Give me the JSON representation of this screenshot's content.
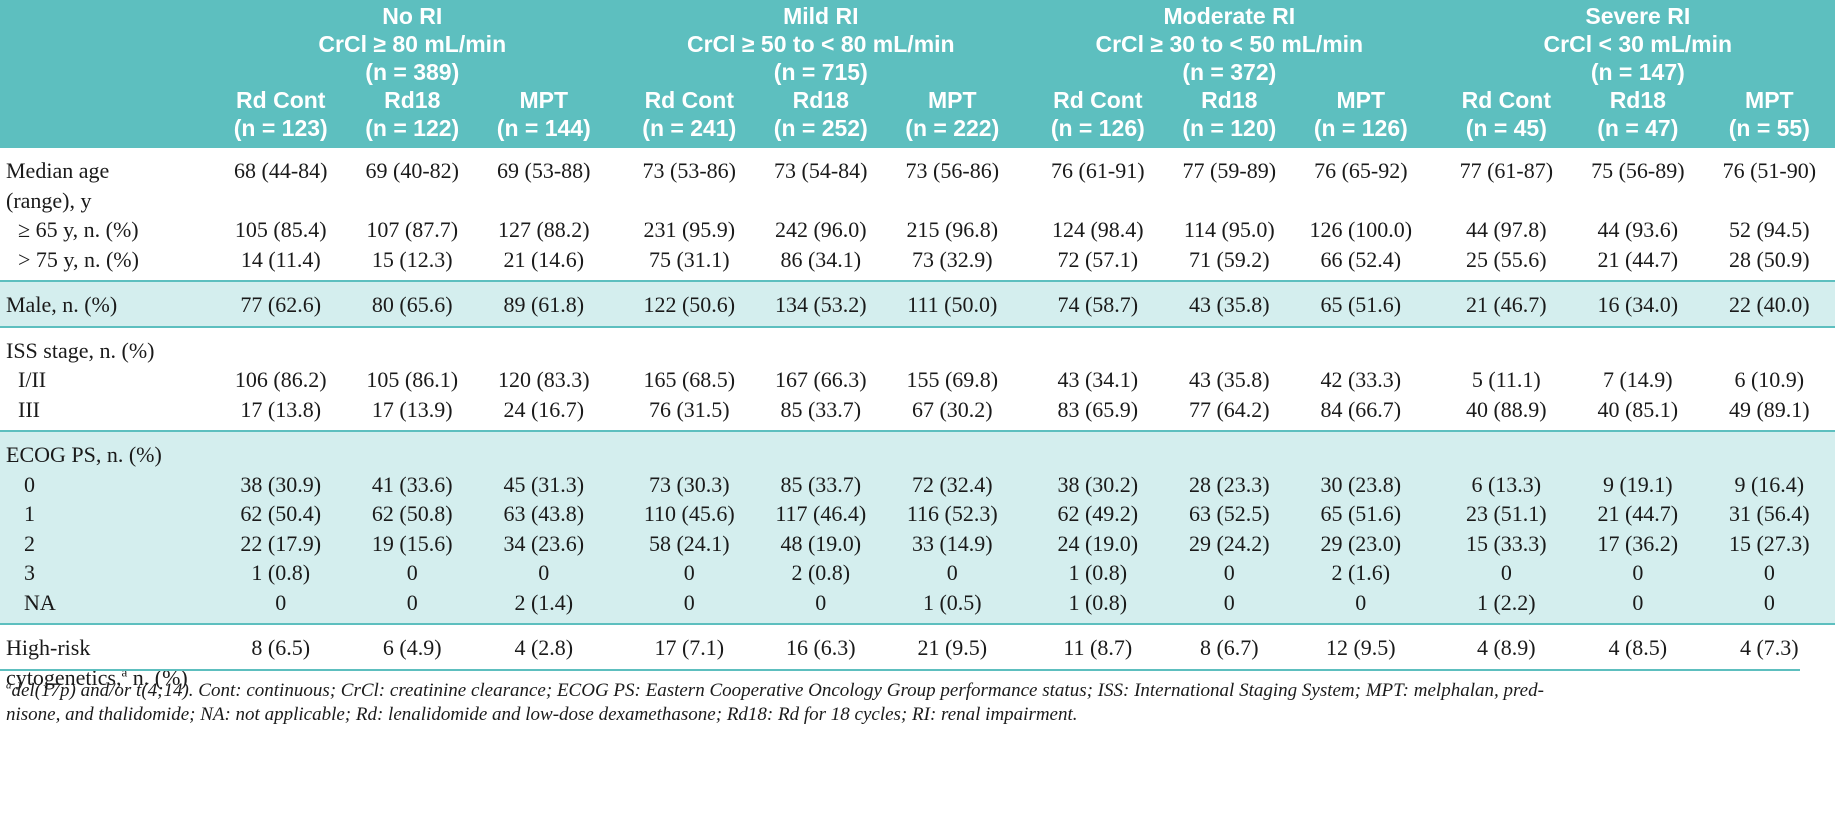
{
  "groups": [
    {
      "name": "No RI",
      "crcl": "CrCl ≥ 80 mL/min",
      "n": "(n = 389)"
    },
    {
      "name": "Mild RI",
      "crcl": "CrCl ≥ 50 to < 80 mL/min",
      "n": "(n = 715)"
    },
    {
      "name": "Moderate RI",
      "crcl": "CrCl ≥ 30 to < 50 mL/min",
      "n": "(n = 372)"
    },
    {
      "name": "Severe RI",
      "crcl": "CrCl < 30 mL/min",
      "n": "(n = 147)"
    }
  ],
  "arms": [
    {
      "name": "Rd Cont",
      "n": "(n = 123)"
    },
    {
      "name": "Rd18",
      "n": "(n = 122)"
    },
    {
      "name": "MPT",
      "n": "(n = 144)"
    },
    {
      "name": "Rd Cont",
      "n": "(n = 241)"
    },
    {
      "name": "Rd18",
      "n": "(n = 252)"
    },
    {
      "name": "MPT",
      "n": "(n = 222)"
    },
    {
      "name": "Rd Cont",
      "n": "(n = 126)"
    },
    {
      "name": "Rd18",
      "n": "(n = 120)"
    },
    {
      "name": "MPT",
      "n": "(n = 126)"
    },
    {
      "name": "Rd Cont",
      "n": "(n = 45)"
    },
    {
      "name": "Rd18",
      "n": "(n = 47)"
    },
    {
      "name": "MPT",
      "n": "(n = 55)"
    }
  ],
  "rows": {
    "age": {
      "label1": "Median age",
      "label2": "(range), y",
      "values": [
        "68 (44-84)",
        "69 (40-82)",
        "69 (53-88)",
        "73 (53-86)",
        "73 (54-84)",
        "73 (56-86)",
        "76 (61-91)",
        "77 (59-89)",
        "76 (65-92)",
        "77 (61-87)",
        "75 (56-89)",
        "76 (51-90)"
      ]
    },
    "ge65": {
      "label": "≥ 65 y, n. (%)",
      "values": [
        "105 (85.4)",
        "107 (87.7)",
        "127 (88.2)",
        "231 (95.9)",
        "242 (96.0)",
        "215 (96.8)",
        "124 (98.4)",
        "114 (95.0)",
        "126 (100.0)",
        "44 (97.8)",
        "44 (93.6)",
        "52 (94.5)"
      ]
    },
    "gt75": {
      "label": "> 75 y, n. (%)",
      "values": [
        "14 (11.4)",
        "15 (12.3)",
        "21 (14.6)",
        "75 (31.1)",
        "86 (34.1)",
        "73 (32.9)",
        "72 (57.1)",
        "71 (59.2)",
        "66 (52.4)",
        "25 (55.6)",
        "21 (44.7)",
        "28 (50.9)"
      ]
    },
    "male": {
      "label": "Male, n. (%)",
      "values": [
        "77 (62.6)",
        "80 (65.6)",
        "89 (61.8)",
        "122 (50.6)",
        "134 (53.2)",
        "111 (50.0)",
        "74 (58.7)",
        "43 (35.8)",
        "65 (51.6)",
        "21 (46.7)",
        "16 (34.0)",
        "22 (40.0)"
      ]
    },
    "iss_header": {
      "label": "ISS stage, n. (%)"
    },
    "iss12": {
      "label": "I/II",
      "values": [
        "106 (86.2)",
        "105 (86.1)",
        "120 (83.3)",
        "165 (68.5)",
        "167 (66.3)",
        "155 (69.8)",
        "43 (34.1)",
        "43 (35.8)",
        "42 (33.3)",
        "5 (11.1)",
        "7 (14.9)",
        "6 (10.9)"
      ]
    },
    "iss3": {
      "label": "III",
      "values": [
        "17 (13.8)",
        "17 (13.9)",
        "24 (16.7)",
        "76 (31.5)",
        "85 (33.7)",
        "67 (30.2)",
        "83 (65.9)",
        "77 (64.2)",
        "84 (66.7)",
        "40 (88.9)",
        "40 (85.1)",
        "49 (89.1)"
      ]
    },
    "ecog_header": {
      "label": "ECOG PS, n. (%)"
    },
    "ecog0": {
      "label": "0",
      "values": [
        "38 (30.9)",
        "41 (33.6)",
        "45 (31.3)",
        "73 (30.3)",
        "85 (33.7)",
        "72 (32.4)",
        "38 (30.2)",
        "28 (23.3)",
        "30 (23.8)",
        "6 (13.3)",
        "9 (19.1)",
        "9 (16.4)"
      ]
    },
    "ecog1": {
      "label": "1",
      "values": [
        "62 (50.4)",
        "62 (50.8)",
        "63 (43.8)",
        "110 (45.6)",
        "117 (46.4)",
        "116 (52.3)",
        "62 (49.2)",
        "63 (52.5)",
        "65 (51.6)",
        "23 (51.1)",
        "21 (44.7)",
        "31 (56.4)"
      ]
    },
    "ecog2": {
      "label": "2",
      "values": [
        "22 (17.9)",
        "19 (15.6)",
        "34 (23.6)",
        "58 (24.1)",
        "48 (19.0)",
        "33 (14.9)",
        "24 (19.0)",
        "29 (24.2)",
        "29 (23.0)",
        "15 (33.3)",
        "17 (36.2)",
        "15 (27.3)"
      ]
    },
    "ecog3": {
      "label": "3",
      "values": [
        "1 (0.8)",
        "0",
        "0",
        "0",
        "2 (0.8)",
        "0",
        "1 (0.8)",
        "0",
        "2 (1.6)",
        "0",
        "0",
        "0"
      ]
    },
    "ecogna": {
      "label": "NA",
      "values": [
        "0",
        "0",
        "2 (1.4)",
        "0",
        "0",
        "1 (0.5)",
        "1 (0.8)",
        "0",
        "0",
        "1 (2.2)",
        "0",
        "0"
      ]
    },
    "hrc": {
      "label1": "High-risk",
      "label2a": "cytogenetics,",
      "label2sup": "a",
      "label2b": " n. (%)",
      "values": [
        "8 (6.5)",
        "6 (4.9)",
        "4 (2.8)",
        "17 (7.1)",
        "16 (6.3)",
        "21 (9.5)",
        "11 (8.7)",
        "8 (6.7)",
        "12 (9.5)",
        "4 (8.9)",
        "4 (8.5)",
        "4 (7.3)"
      ]
    }
  },
  "footnote": {
    "sup": "a",
    "line1": "del(17p) and/or t(4;14). Cont: continuous; CrCl: creatinine clearance; ECOG PS: Eastern Cooperative Oncology Group performance status; ISS: International Staging System; MPT: melphalan, pred-",
    "line2": "nisone, and thalidomide; NA: not applicable; Rd: lenalidomide and low-dose dexamethasone; Rd18: Rd for 18 cycles; RI: renal impairment."
  },
  "colors": {
    "header_bg": "#5dbfbf",
    "shade_bg": "#d4eeee",
    "header_text": "#ffffff"
  }
}
